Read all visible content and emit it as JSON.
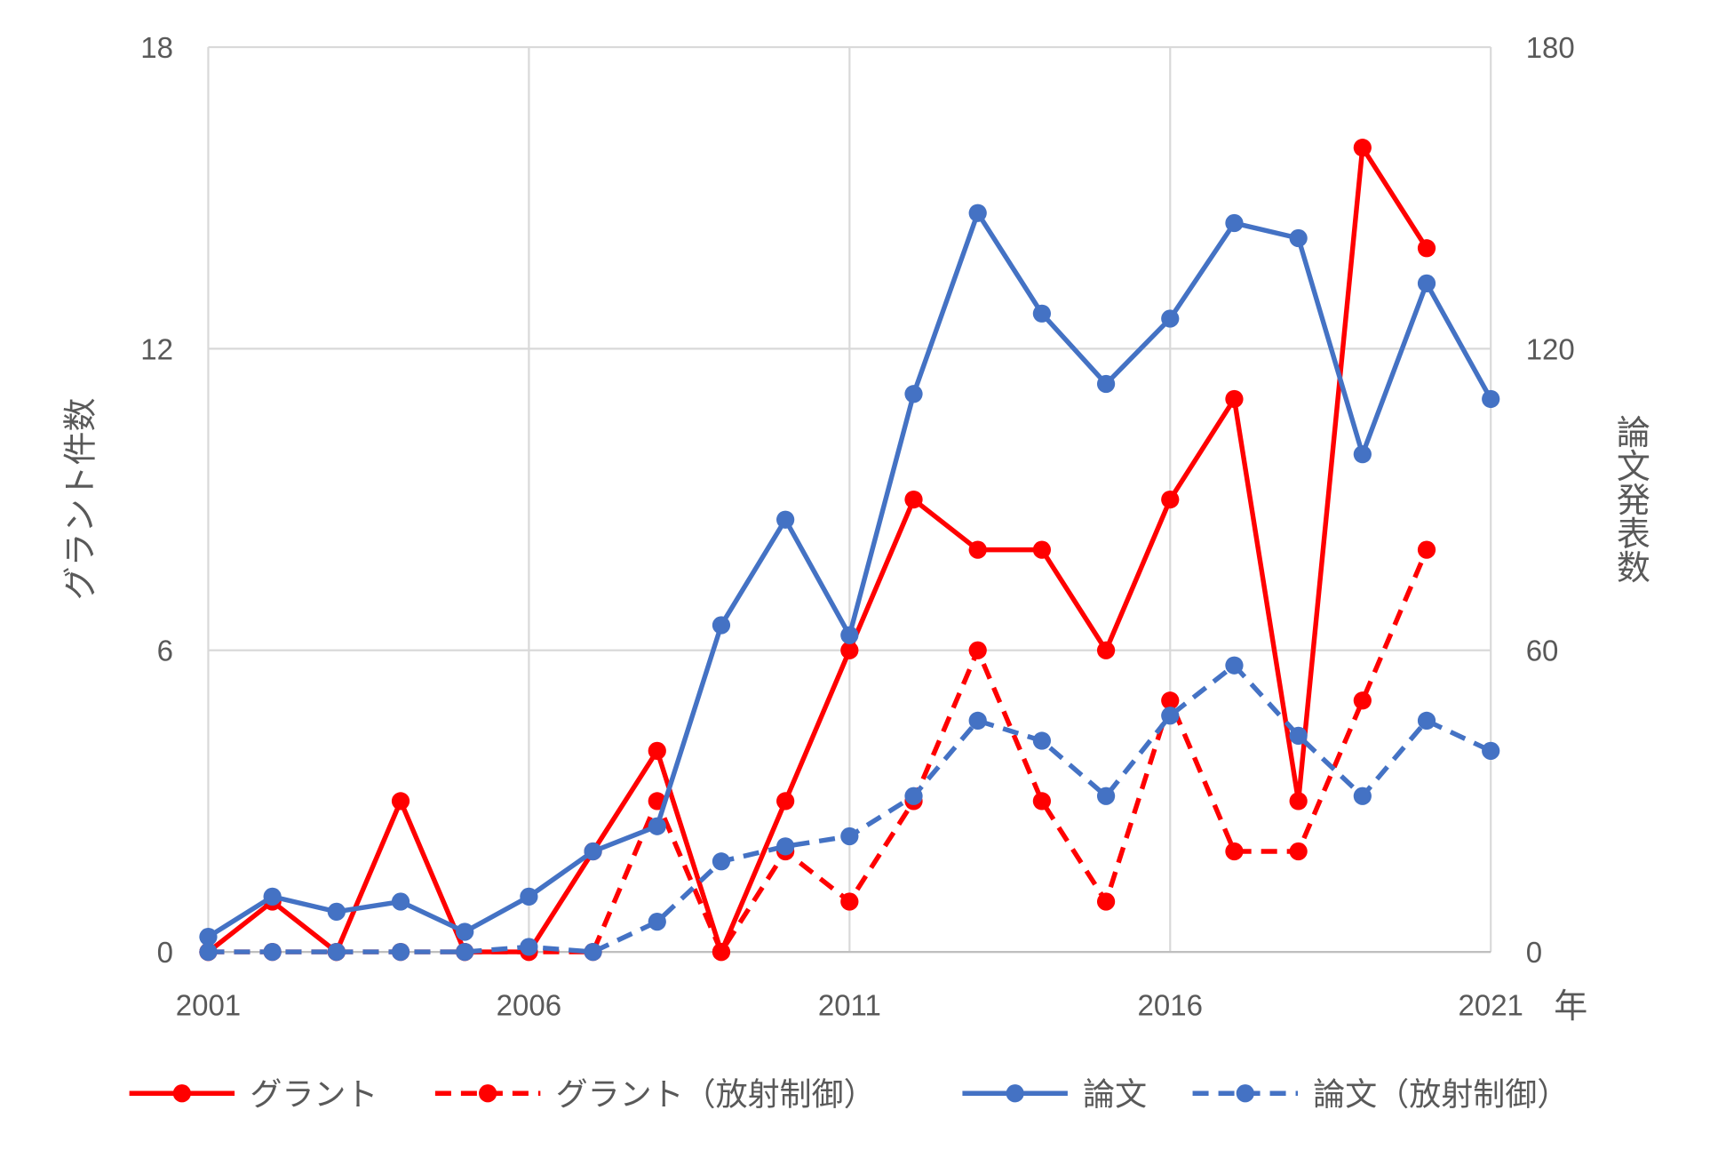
{
  "chart_data": {
    "type": "line",
    "x": [
      2001,
      2002,
      2003,
      2004,
      2005,
      2006,
      2007,
      2008,
      2009,
      2010,
      2011,
      2012,
      2013,
      2014,
      2015,
      2016,
      2017,
      2018,
      2019,
      2020,
      2021
    ],
    "x_ticks": [
      "2001",
      "2006",
      "2011",
      "2016",
      "2021"
    ],
    "xlabel": "年",
    "y_left": {
      "label": "グラント件数",
      "ticks": [
        "0",
        "6",
        "12",
        "18"
      ],
      "lim": [
        0,
        18
      ]
    },
    "y_right": {
      "label": "論文発表数",
      "ticks": [
        "0",
        "60",
        "120",
        "180"
      ],
      "lim": [
        0,
        180
      ]
    },
    "grid": true,
    "legend_position": "bottom",
    "series": [
      {
        "name": "グラント",
        "axis": "left",
        "color": "#ff0000",
        "dash": "solid",
        "values": [
          0,
          1,
          0,
          3,
          0,
          0,
          2,
          4,
          0,
          3,
          6,
          9,
          8,
          8,
          6,
          9,
          11,
          3,
          16,
          14,
          null
        ]
      },
      {
        "name": "グラント（放射制御）",
        "axis": "left",
        "color": "#ff0000",
        "dash": "dashed",
        "values": [
          0,
          0,
          0,
          0,
          0,
          0,
          0,
          3,
          0,
          2,
          1,
          3,
          6,
          3,
          1,
          5,
          2,
          2,
          5,
          8,
          null
        ]
      },
      {
        "name": "論文",
        "axis": "right",
        "color": "#4472c4",
        "dash": "solid",
        "values": [
          3,
          11,
          8,
          10,
          4,
          11,
          20,
          25,
          65,
          86,
          63,
          111,
          147,
          127,
          113,
          126,
          145,
          142,
          99,
          133,
          110
        ]
      },
      {
        "name": "論文（放射制御）",
        "axis": "right",
        "color": "#4472c4",
        "dash": "dashed",
        "values": [
          0,
          0,
          0,
          0,
          0,
          1,
          0,
          6,
          18,
          21,
          23,
          31,
          46,
          42,
          31,
          47,
          57,
          43,
          31,
          46,
          40
        ]
      }
    ]
  }
}
